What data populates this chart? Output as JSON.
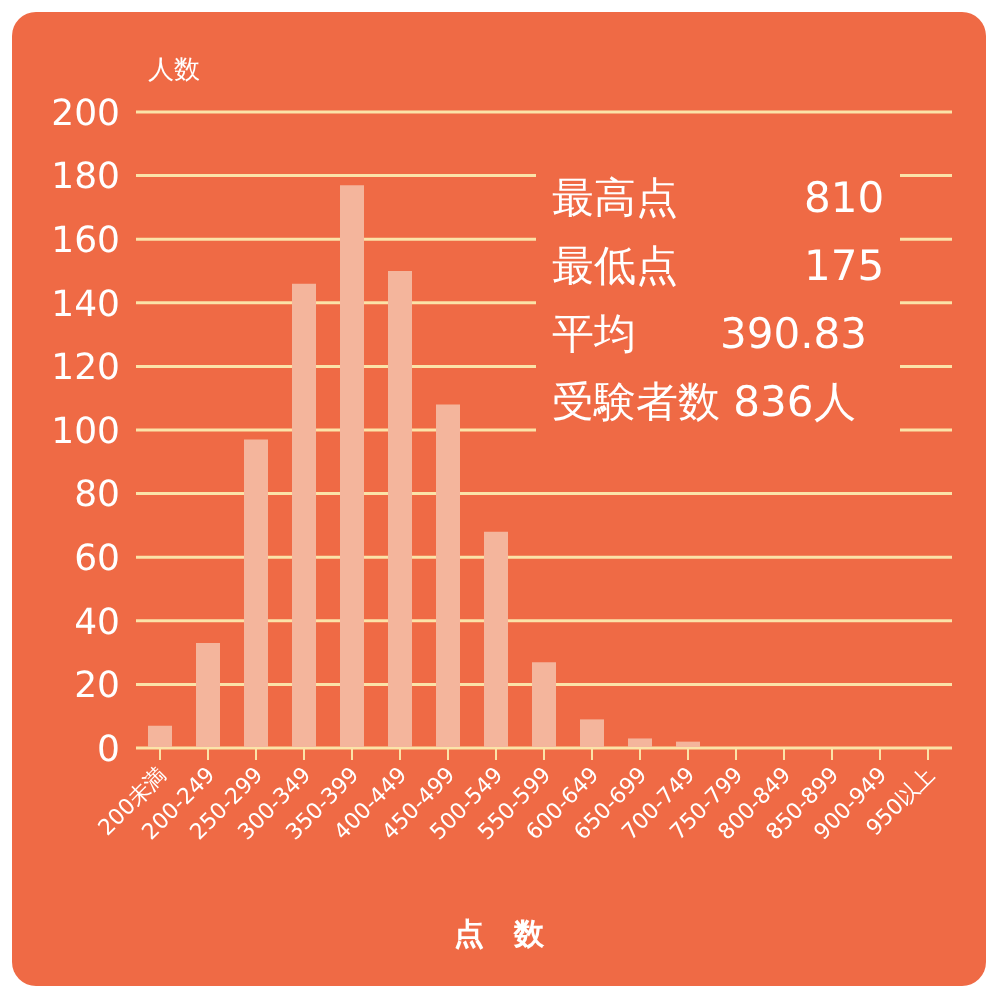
{
  "chart_data": {
    "type": "bar",
    "xlabel": "点　数",
    "ylabel": "人数",
    "categories": [
      "200未満",
      "200-249",
      "250-299",
      "300-349",
      "350-399",
      "400-449",
      "450-499",
      "500-549",
      "550-599",
      "600-649",
      "650-699",
      "700-749",
      "750-799",
      "800-849",
      "850-899",
      "900-949",
      "950以上"
    ],
    "values": [
      7,
      33,
      97,
      146,
      177,
      150,
      108,
      68,
      27,
      9,
      3,
      2,
      0,
      0,
      0,
      0,
      0
    ],
    "color": "#f4b59c",
    "ylim": [
      0,
      200
    ],
    "yticks": [
      0,
      20,
      40,
      60,
      80,
      100,
      120,
      140,
      160,
      180,
      200
    ],
    "grid": "y",
    "annotations": [
      "最高点　　　810",
      "最低点　　　175",
      "平均　　390.83",
      "受験者数 836人"
    ]
  }
}
